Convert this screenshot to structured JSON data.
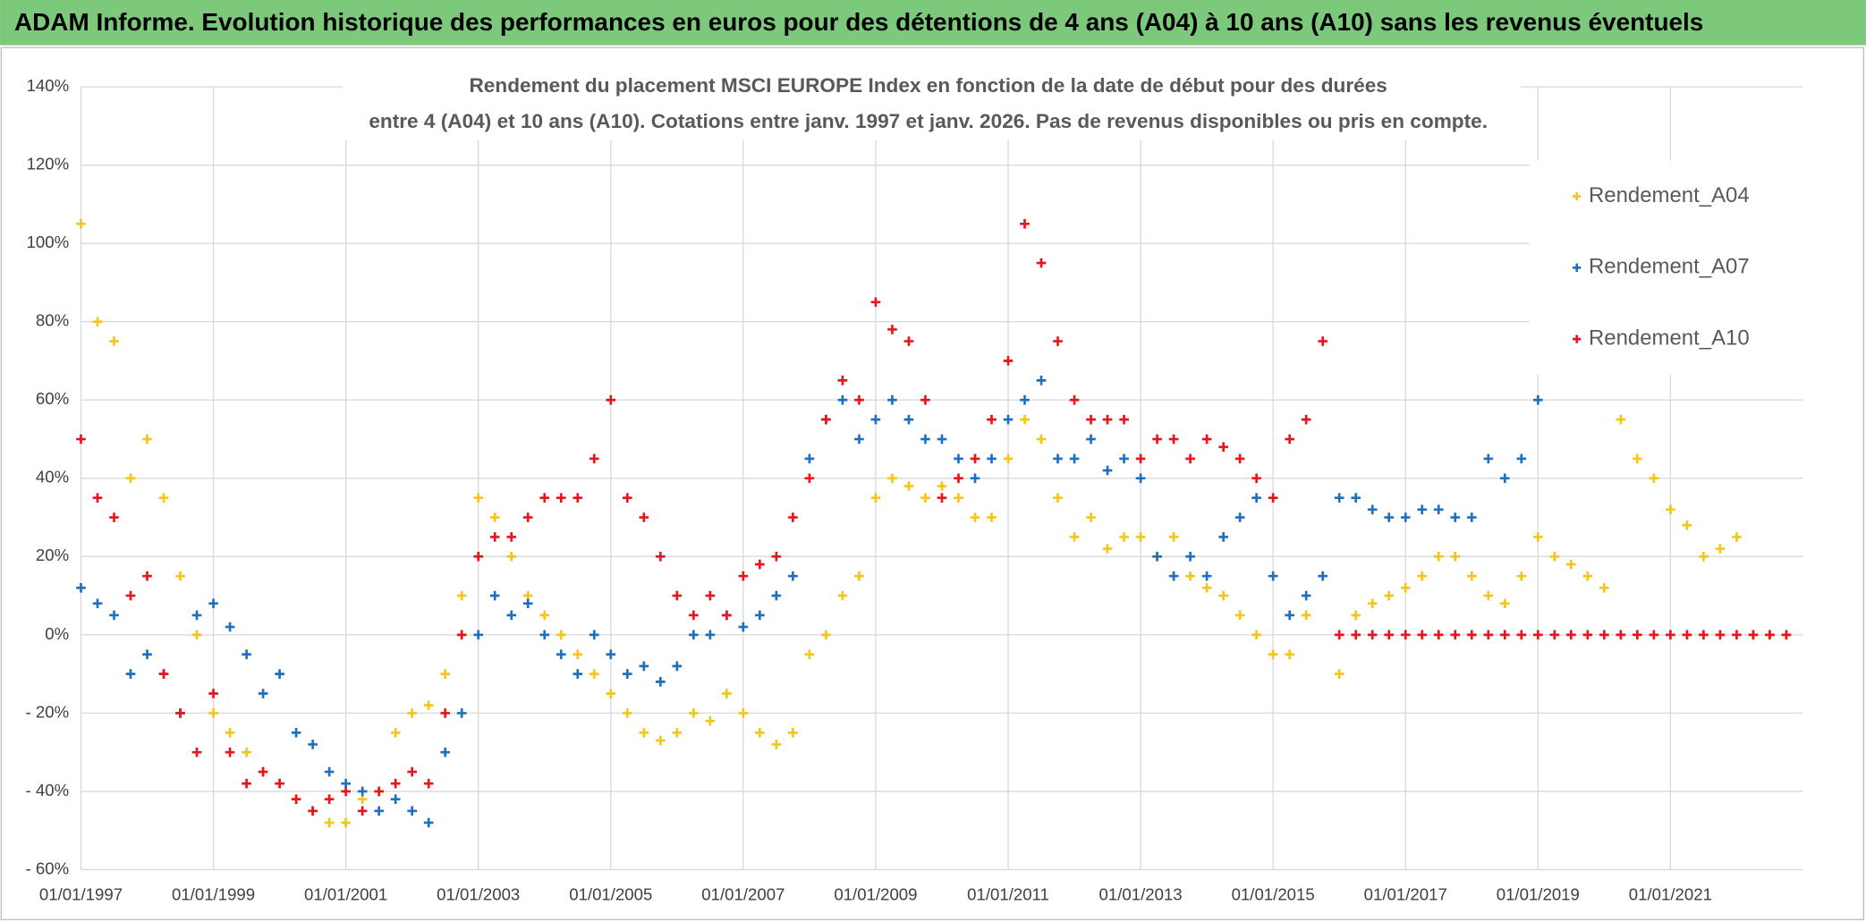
{
  "chart_data": {
    "type": "scatter",
    "title": "ADAM Informe. Evolution historique des performances en euros pour des détentions de 4 ans (A04) à 10 ans (A10) sans les revenus éventuels",
    "subtitle": [
      "Rendement du placement MSCI EUROPE Index en fonction de la date de début pour des durées",
      "entre 4 (A04) et 10 ans (A10). Cotations entre janv. 1997 et janv. 2026. Pas de revenus disponibles ou pris en compte."
    ],
    "x": [
      "01/01/1997",
      "01/04/1997",
      "01/07/1997",
      "01/10/1997",
      "01/01/1998",
      "01/04/1998",
      "01/07/1998",
      "01/10/1998",
      "01/01/1999",
      "01/04/1999",
      "01/07/1999",
      "01/10/1999",
      "01/01/2000",
      "01/04/2000",
      "01/07/2000",
      "01/10/2000",
      "01/01/2001",
      "01/04/2001",
      "01/07/2001",
      "01/10/2001",
      "01/01/2002",
      "01/04/2002",
      "01/07/2002",
      "01/10/2002",
      "01/01/2003",
      "01/04/2003",
      "01/07/2003",
      "01/10/2003",
      "01/01/2004",
      "01/04/2004",
      "01/07/2004",
      "01/10/2004",
      "01/01/2005",
      "01/04/2005",
      "01/07/2005",
      "01/10/2005",
      "01/01/2006",
      "01/04/2006",
      "01/07/2006",
      "01/10/2006",
      "01/01/2007",
      "01/04/2007",
      "01/07/2007",
      "01/10/2007",
      "01/01/2008",
      "01/04/2008",
      "01/07/2008",
      "01/10/2008",
      "01/01/2009",
      "01/04/2009",
      "01/07/2009",
      "01/10/2009",
      "01/01/2010",
      "01/04/2010",
      "01/07/2010",
      "01/10/2010",
      "01/01/2011",
      "01/04/2011",
      "01/07/2011",
      "01/10/2011",
      "01/01/2012",
      "01/04/2012",
      "01/07/2012",
      "01/10/2012",
      "01/01/2013",
      "01/04/2013",
      "01/07/2013",
      "01/10/2013",
      "01/01/2014",
      "01/04/2014",
      "01/07/2014",
      "01/10/2014",
      "01/01/2015",
      "01/04/2015",
      "01/07/2015",
      "01/10/2015",
      "01/01/2016",
      "01/04/2016",
      "01/07/2016",
      "01/10/2016",
      "01/01/2017",
      "01/04/2017",
      "01/07/2017",
      "01/10/2017",
      "01/01/2018",
      "01/04/2018",
      "01/07/2018",
      "01/10/2018",
      "01/01/2019",
      "01/04/2019",
      "01/07/2019",
      "01/10/2019",
      "01/01/2020",
      "01/04/2020",
      "01/07/2020",
      "01/10/2020",
      "01/01/2021",
      "01/04/2021",
      "01/07/2021",
      "01/10/2021",
      "01/01/2022",
      "01/04/2022",
      "01/07/2022",
      "01/10/2022"
    ],
    "series": [
      {
        "name": "Rendement_A04",
        "color": "#f5c518",
        "values": [
          105,
          80,
          75,
          40,
          50,
          35,
          15,
          0,
          -20,
          -25,
          -30,
          -35,
          -38,
          -42,
          -45,
          -48,
          -48,
          -42,
          -40,
          -25,
          -20,
          -18,
          -10,
          10,
          35,
          30,
          20,
          10,
          5,
          0,
          -5,
          -10,
          -15,
          -20,
          -25,
          -27,
          -25,
          -20,
          -22,
          -15,
          -20,
          -25,
          -28,
          -25,
          -5,
          0,
          10,
          15,
          35,
          40,
          38,
          35,
          38,
          35,
          30,
          30,
          45,
          55,
          50,
          35,
          25,
          30,
          22,
          25,
          25,
          20,
          25,
          15,
          12,
          10,
          5,
          0,
          -5,
          -5,
          5,
          15,
          -10,
          5,
          8,
          10,
          12,
          15,
          20,
          20,
          15,
          10,
          8,
          15,
          25,
          20,
          18,
          15,
          12,
          55,
          45,
          40,
          32,
          28,
          20,
          22,
          25,
          0,
          0,
          0
        ]
      },
      {
        "name": "Rendement_A07",
        "color": "#1f6fbf",
        "values": [
          12,
          8,
          5,
          -10,
          -5,
          -10,
          -20,
          5,
          8,
          2,
          -5,
          -15,
          -10,
          -25,
          -28,
          -35,
          -38,
          -40,
          -45,
          -42,
          -45,
          -48,
          -30,
          -20,
          0,
          10,
          5,
          8,
          0,
          -5,
          -10,
          0,
          -5,
          -10,
          -8,
          -12,
          -8,
          0,
          0,
          5,
          2,
          5,
          10,
          15,
          45,
          55,
          60,
          50,
          55,
          60,
          55,
          50,
          50,
          45,
          40,
          45,
          55,
          60,
          65,
          45,
          45,
          50,
          42,
          45,
          40,
          20,
          15,
          20,
          15,
          25,
          30,
          35,
          15,
          5,
          10,
          15,
          35,
          35,
          32,
          30,
          30,
          32,
          32,
          30,
          30,
          45,
          40,
          45,
          60,
          null,
          null,
          null,
          null,
          null,
          null,
          null,
          null,
          null,
          null,
          null,
          null,
          null,
          null,
          null
        ]
      },
      {
        "name": "Rendement_A10",
        "color": "#e8141c",
        "values": [
          50,
          35,
          30,
          10,
          15,
          -10,
          -20,
          -30,
          -15,
          -30,
          -38,
          -35,
          -38,
          -42,
          -45,
          -42,
          -40,
          -45,
          -40,
          -38,
          -35,
          -38,
          -20,
          0,
          20,
          25,
          25,
          30,
          35,
          35,
          35,
          45,
          60,
          35,
          30,
          20,
          10,
          5,
          10,
          5,
          15,
          18,
          20,
          30,
          40,
          55,
          65,
          60,
          85,
          78,
          75,
          60,
          35,
          40,
          45,
          55,
          70,
          105,
          95,
          75,
          60,
          55,
          55,
          55,
          45,
          50,
          50,
          45,
          50,
          48,
          45,
          40,
          35,
          50,
          55,
          75,
          0,
          0,
          0,
          0,
          0,
          0,
          0,
          0,
          0,
          0,
          0,
          0,
          0,
          0,
          0,
          0,
          0,
          0,
          0,
          0,
          0,
          0,
          0,
          0,
          0,
          0,
          0,
          0
        ]
      }
    ],
    "xlim": [
      "01/01/1997",
      "01/01/2023"
    ],
    "xticks": [
      "01/01/1997",
      "01/01/1999",
      "01/01/2001",
      "01/01/2003",
      "01/01/2005",
      "01/01/2007",
      "01/01/2009",
      "01/01/2011",
      "01/01/2013",
      "01/01/2015",
      "01/01/2017",
      "01/01/2019",
      "01/01/2021"
    ],
    "ylim": [
      -60,
      140
    ],
    "yticks": [
      {
        "value": -60,
        "label": "- 60%"
      },
      {
        "value": -40,
        "label": "- 40%"
      },
      {
        "value": -20,
        "label": "- 20%"
      },
      {
        "value": 0,
        "label": "0%"
      },
      {
        "value": 20,
        "label": "20%"
      },
      {
        "value": 40,
        "label": "40%"
      },
      {
        "value": 60,
        "label": "60%"
      },
      {
        "value": 80,
        "label": "80%"
      },
      {
        "value": 100,
        "label": "100%"
      },
      {
        "value": 120,
        "label": "120%"
      },
      {
        "value": 140,
        "label": "140%"
      }
    ],
    "grid": true,
    "legend": "upper right"
  }
}
